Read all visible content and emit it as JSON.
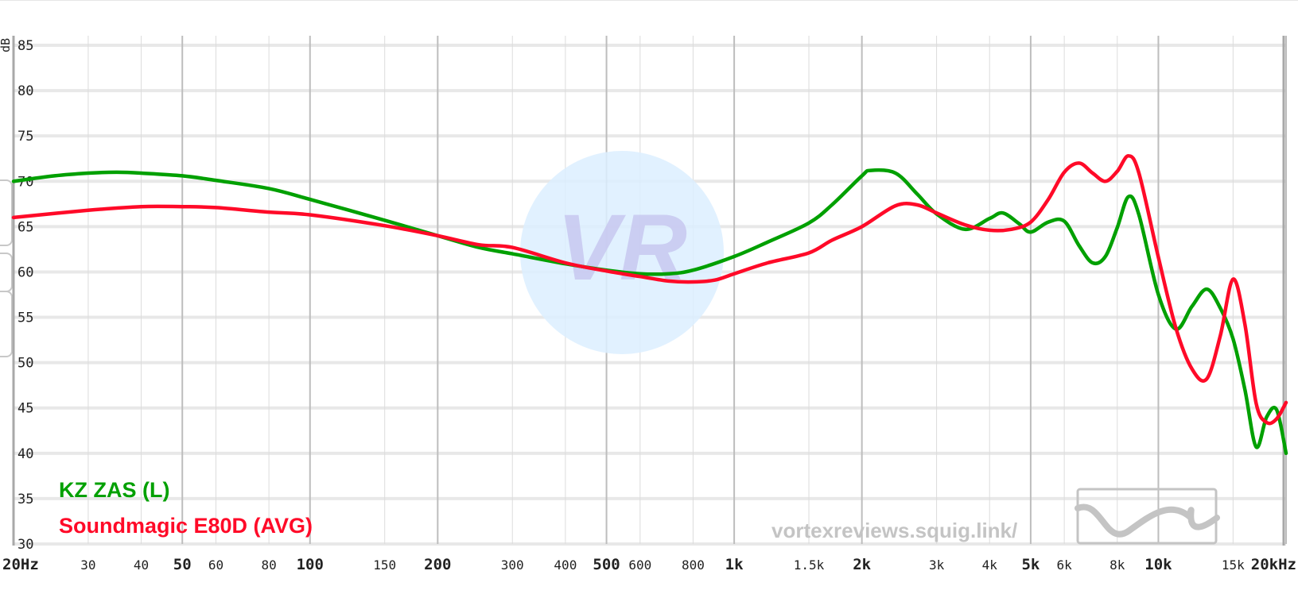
{
  "chart_data": {
    "type": "line",
    "title": "",
    "xlabel": "",
    "ylabel": "dB",
    "x_scale": "log",
    "xlim": [
      20,
      20000
    ],
    "ylim": [
      30,
      85
    ],
    "grid": true,
    "y_ticks": [
      "30",
      "35",
      "40",
      "45",
      "50",
      "55",
      "60",
      "65",
      "70",
      "75",
      "80",
      "85"
    ],
    "x_ticks": [
      {
        "value": 20,
        "label": "20Hz",
        "major": true
      },
      {
        "value": 30,
        "label": "30",
        "major": false
      },
      {
        "value": 40,
        "label": "40",
        "major": false
      },
      {
        "value": 50,
        "label": "50",
        "major": true
      },
      {
        "value": 60,
        "label": "60",
        "major": false
      },
      {
        "value": 80,
        "label": "80",
        "major": false
      },
      {
        "value": 100,
        "label": "100",
        "major": true
      },
      {
        "value": 150,
        "label": "150",
        "major": false
      },
      {
        "value": 200,
        "label": "200",
        "major": true
      },
      {
        "value": 300,
        "label": "300",
        "major": false
      },
      {
        "value": 400,
        "label": "400",
        "major": false
      },
      {
        "value": 500,
        "label": "500",
        "major": true
      },
      {
        "value": 600,
        "label": "600",
        "major": false
      },
      {
        "value": 800,
        "label": "800",
        "major": false
      },
      {
        "value": 1000,
        "label": "1k",
        "major": true
      },
      {
        "value": 1500,
        "label": "1.5k",
        "major": false
      },
      {
        "value": 2000,
        "label": "2k",
        "major": true
      },
      {
        "value": 3000,
        "label": "3k",
        "major": false
      },
      {
        "value": 4000,
        "label": "4k",
        "major": false
      },
      {
        "value": 5000,
        "label": "5k",
        "major": true
      },
      {
        "value": 6000,
        "label": "6k",
        "major": false
      },
      {
        "value": 8000,
        "label": "8k",
        "major": false
      },
      {
        "value": 10000,
        "label": "10k",
        "major": true
      },
      {
        "value": 15000,
        "label": "15k",
        "major": false
      },
      {
        "value": 20000,
        "label": "20kHz",
        "major": true
      }
    ],
    "series": [
      {
        "name": "KZ ZAS (L)",
        "color": "#00a000",
        "x": [
          20,
          25,
          30,
          35,
          40,
          50,
          60,
          80,
          100,
          150,
          200,
          250,
          300,
          400,
          500,
          600,
          700,
          800,
          1000,
          1200,
          1500,
          1700,
          2000,
          2100,
          2400,
          2700,
          3000,
          3500,
          4000,
          4300,
          4700,
          5000,
          5500,
          6000,
          6500,
          7000,
          7500,
          8000,
          8500,
          9000,
          10000,
          11000,
          12000,
          13000,
          14000,
          15000,
          16000,
          17000,
          18000,
          19000,
          20000
        ],
        "y": [
          70.0,
          70.6,
          70.9,
          71.0,
          70.9,
          70.6,
          70.1,
          69.2,
          68.0,
          65.7,
          64.0,
          62.7,
          62.0,
          60.9,
          60.2,
          59.8,
          59.8,
          60.2,
          61.7,
          63.3,
          65.4,
          67.4,
          70.6,
          71.2,
          70.9,
          68.6,
          66.4,
          64.7,
          65.9,
          66.5,
          65.3,
          64.4,
          65.5,
          65.6,
          62.9,
          61.0,
          61.7,
          64.9,
          68.3,
          66.3,
          57.5,
          53.7,
          56.2,
          58.1,
          56.0,
          52.6,
          47.0,
          40.7,
          44.0,
          44.8,
          40.0
        ]
      },
      {
        "name": "Soundmagic E80D (AVG)",
        "color": "#ff0a28",
        "x": [
          20,
          30,
          40,
          50,
          60,
          80,
          100,
          150,
          200,
          250,
          300,
          400,
          500,
          600,
          700,
          800,
          900,
          1000,
          1200,
          1500,
          1700,
          2000,
          2400,
          2700,
          3000,
          3500,
          4000,
          4500,
          5000,
          5500,
          6000,
          6500,
          7000,
          7500,
          8000,
          8500,
          9000,
          10000,
          11000,
          12000,
          13000,
          14000,
          15000,
          16000,
          17000,
          18000,
          19000,
          20000
        ],
        "y": [
          66.0,
          66.8,
          67.2,
          67.2,
          67.1,
          66.6,
          66.3,
          65.1,
          64.0,
          63.0,
          62.7,
          61.0,
          60.1,
          59.5,
          59.0,
          58.9,
          59.1,
          59.8,
          61.0,
          62.1,
          63.5,
          65.0,
          67.3,
          67.4,
          66.5,
          65.2,
          64.6,
          64.7,
          65.5,
          68.0,
          71.0,
          72.0,
          70.9,
          70.0,
          71.1,
          72.8,
          70.9,
          61.6,
          53.8,
          49.3,
          48.2,
          53.0,
          59.2,
          54.2,
          45.5,
          43.4,
          43.8,
          45.6
        ]
      }
    ],
    "legend_position": "bottom-left"
  },
  "legend": {
    "entries": [
      "KZ ZAS (L)",
      "Soundmagic E80D (AVG)"
    ]
  },
  "watermark": {
    "site": "vortexreviews.squig.link/",
    "logo_text": "VR"
  },
  "colors": {
    "grid": "#e8e8e8",
    "axis": "#a8a8a8",
    "watermark": "#c4c4c4",
    "logo_fill": "#dcefff"
  }
}
